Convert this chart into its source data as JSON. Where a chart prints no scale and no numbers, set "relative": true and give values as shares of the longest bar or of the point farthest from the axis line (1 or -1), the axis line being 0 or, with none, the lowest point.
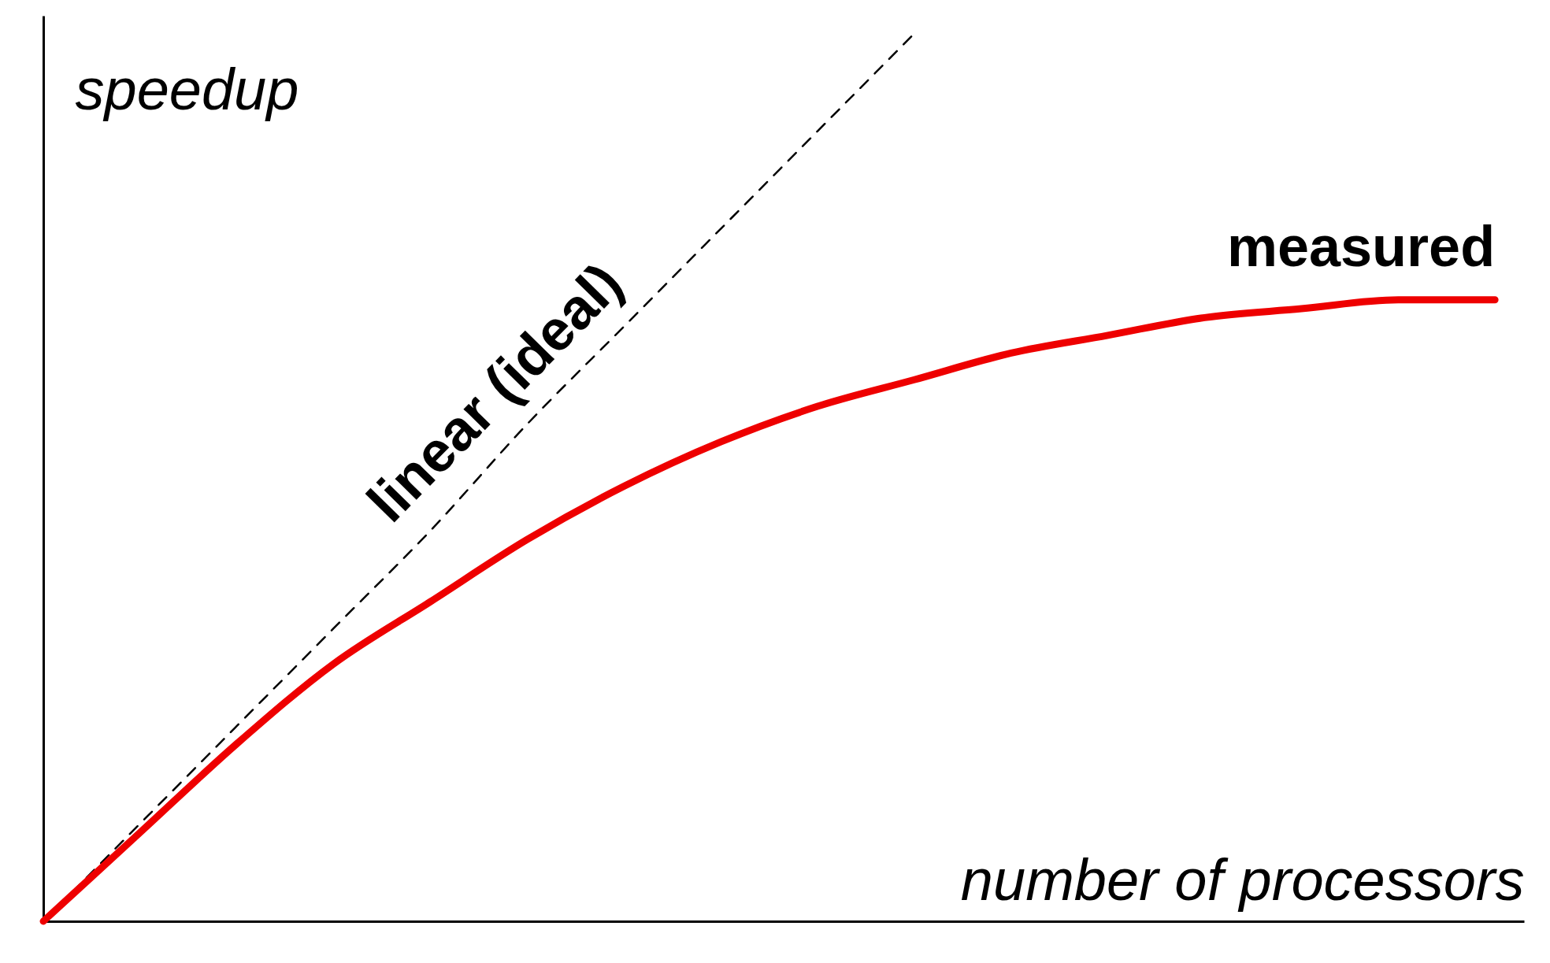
{
  "chart_data": {
    "type": "line",
    "relative": true,
    "xlabel": "number of processors",
    "ylabel": "speedup",
    "categories": [
      null,
      null,
      null,
      null,
      null,
      null,
      null,
      null,
      null,
      null,
      null,
      null,
      null,
      null,
      null,
      null
    ],
    "series": [
      {
        "name": "linear (ideal)",
        "color": "#000000",
        "line_style": "dashed",
        "values": [
          0,
          0.11,
          0.22,
          0.33,
          0.44,
          0.56,
          0.67,
          0.78,
          0.89,
          1.0,
          null,
          null,
          null,
          null,
          null,
          null
        ]
      },
      {
        "name": "measured",
        "color": "#ee0000",
        "line_style": "solid",
        "values": [
          0,
          0.1,
          0.2,
          0.29,
          0.36,
          0.43,
          0.49,
          0.54,
          0.58,
          0.61,
          0.64,
          0.66,
          0.68,
          0.69,
          0.7,
          0.7
        ]
      }
    ],
    "marker": "none",
    "grid": false,
    "tick_labels": false
  }
}
